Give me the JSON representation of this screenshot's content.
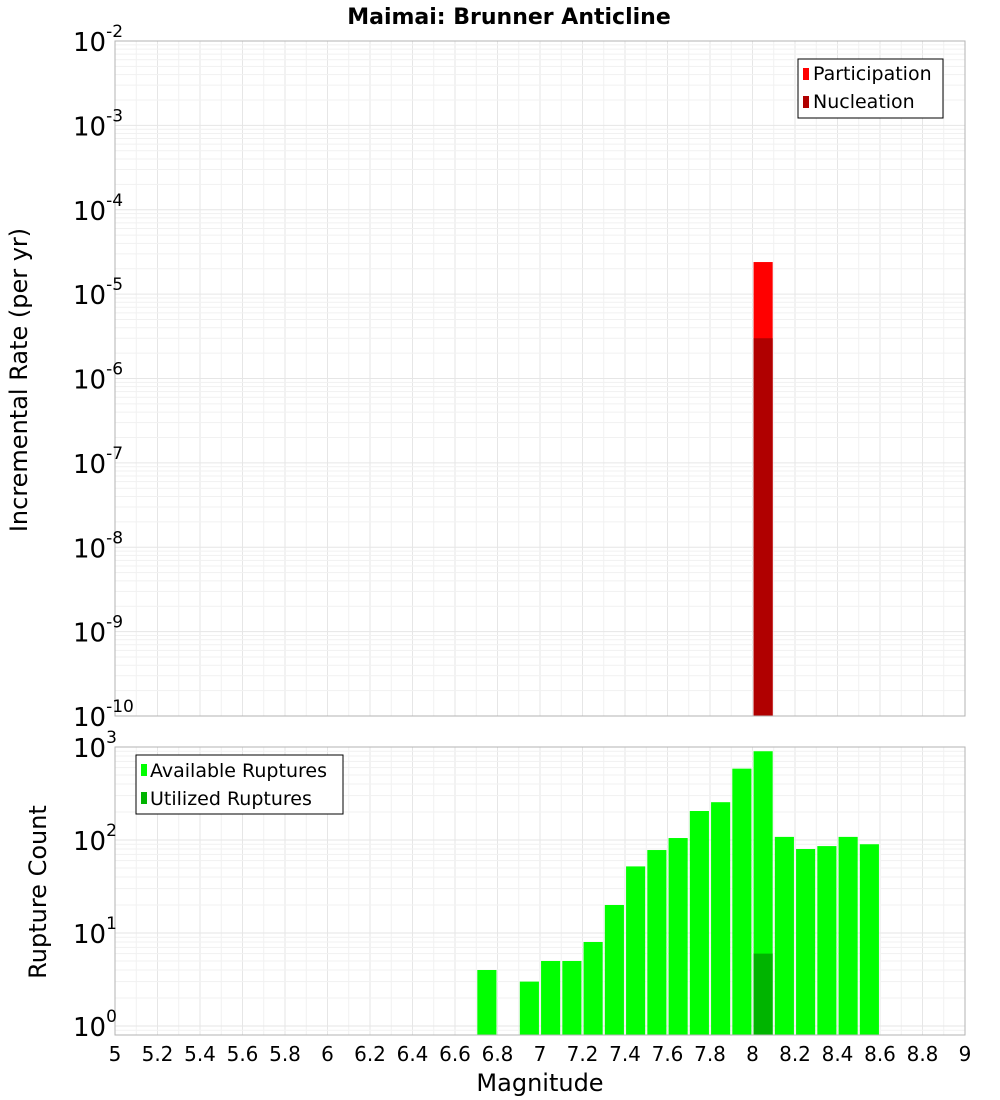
{
  "chart_data": [
    {
      "type": "bar",
      "title": "Maimai: Brunner Anticline",
      "ylabel": "Incremental Rate (per yr)",
      "xlabel": "",
      "y_scale": "log",
      "xlim": [
        5,
        9
      ],
      "ylim": [
        1e-10,
        0.01
      ],
      "y_ticks": [
        {
          "base": "10",
          "exp": "-2"
        },
        {
          "base": "10",
          "exp": "-3"
        },
        {
          "base": "10",
          "exp": "-4"
        },
        {
          "base": "10",
          "exp": "-5"
        },
        {
          "base": "10",
          "exp": "-6"
        },
        {
          "base": "10",
          "exp": "-7"
        },
        {
          "base": "10",
          "exp": "-8"
        },
        {
          "base": "10",
          "exp": "-9"
        },
        {
          "base": "10",
          "exp": "-10"
        }
      ],
      "grid": true,
      "legend_position": "top-right",
      "series": [
        {
          "name": "Participation",
          "color": "#ff0000",
          "points": [
            {
              "x": 8.05,
              "y": 2.4e-05
            }
          ]
        },
        {
          "name": "Nucleation",
          "color": "#b00000",
          "points": [
            {
              "x": 8.05,
              "y": 3e-06
            }
          ]
        }
      ]
    },
    {
      "type": "bar",
      "ylabel": "Rupture Count",
      "xlabel": "Magnitude",
      "y_scale": "log",
      "xlim": [
        5,
        9
      ],
      "ylim": [
        0.8,
        1000
      ],
      "y_ticks": [
        {
          "base": "10",
          "exp": "3"
        },
        {
          "base": "10",
          "exp": "2"
        },
        {
          "base": "10",
          "exp": "1"
        },
        {
          "base": "10",
          "exp": "0"
        }
      ],
      "x_ticks": [
        "5",
        "5.2",
        "5.4",
        "5.6",
        "5.8",
        "6",
        "6.2",
        "6.4",
        "6.6",
        "6.8",
        "7",
        "7.2",
        "7.4",
        "7.6",
        "7.8",
        "8",
        "8.2",
        "8.4",
        "8.6",
        "8.8",
        "9"
      ],
      "grid": true,
      "legend_position": "top-left",
      "series": [
        {
          "name": "Available Ruptures",
          "color": "#00ff00",
          "points": [
            {
              "x": 6.75,
              "y": 4
            },
            {
              "x": 6.95,
              "y": 3
            },
            {
              "x": 7.05,
              "y": 5
            },
            {
              "x": 7.15,
              "y": 5
            },
            {
              "x": 7.25,
              "y": 8
            },
            {
              "x": 7.35,
              "y": 20
            },
            {
              "x": 7.45,
              "y": 52
            },
            {
              "x": 7.55,
              "y": 78
            },
            {
              "x": 7.65,
              "y": 105
            },
            {
              "x": 7.75,
              "y": 205
            },
            {
              "x": 7.85,
              "y": 255
            },
            {
              "x": 7.95,
              "y": 585
            },
            {
              "x": 8.05,
              "y": 900
            },
            {
              "x": 8.15,
              "y": 108
            },
            {
              "x": 8.25,
              "y": 80
            },
            {
              "x": 8.35,
              "y": 86
            },
            {
              "x": 8.45,
              "y": 108
            },
            {
              "x": 8.55,
              "y": 90
            }
          ]
        },
        {
          "name": "Utilized Ruptures",
          "color": "#00b400",
          "points": [
            {
              "x": 8.05,
              "y": 6
            }
          ]
        }
      ]
    }
  ]
}
